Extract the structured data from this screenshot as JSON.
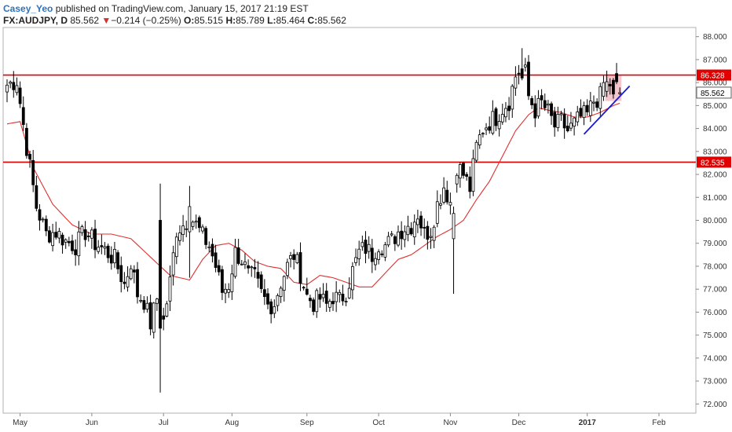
{
  "header": {
    "author": "Casey_Yeo",
    "published_text": " published on TradingView.com, January 15, 2017 21:19 EST",
    "symbol": "FX:AUDJPY, D",
    "last": "85.562",
    "change_arrow": "▼",
    "change": "−0.214 (−0.25%)",
    "open_label": "O:",
    "open": "85.515",
    "high_label": "H:",
    "high": "85.789",
    "low_label": "L:",
    "low": "85.464",
    "close_label": "C:",
    "close": "85.562"
  },
  "colors": {
    "up_body": "#ffffff",
    "down_body": "#000000",
    "wick": "#000000",
    "ma": "#e03030",
    "level": "#e00000",
    "trendline": "#1a1ad0",
    "highlight": "#f4b8c2",
    "current_price_box": "#ffffff"
  },
  "chart_data": {
    "type": "candlestick",
    "symbol": "FX:AUDJPY",
    "timeframe": "D",
    "ylim": [
      71.6,
      88.4
    ],
    "y_ticks": [
      "72.000",
      "73.000",
      "74.000",
      "75.000",
      "76.000",
      "77.000",
      "78.000",
      "79.000",
      "80.000",
      "81.000",
      "82.000",
      "83.000",
      "84.000",
      "85.000",
      "86.000",
      "87.000",
      "88.000"
    ],
    "x_ticks": [
      {
        "label": "May",
        "index": 4
      },
      {
        "label": "Jun",
        "index": 26
      },
      {
        "label": "Jul",
        "index": 48
      },
      {
        "label": "Aug",
        "index": 69
      },
      {
        "label": "Sep",
        "index": 92
      },
      {
        "label": "Oct",
        "index": 114
      },
      {
        "label": "Nov",
        "index": 136
      },
      {
        "label": "Dec",
        "index": 157
      },
      {
        "label": "2017",
        "index": 178
      },
      {
        "label": "Feb",
        "index": 200
      }
    ],
    "horizontal_levels": [
      {
        "value": 86.328,
        "label": "86.328"
      },
      {
        "value": 82.535,
        "label": "82.535"
      }
    ],
    "current_price": {
      "value": 85.562,
      "label": "85.562"
    },
    "trendline": {
      "start": {
        "index": 177,
        "value": 83.75
      },
      "end": {
        "index": 191,
        "value": 85.85
      }
    },
    "highlight_zone": {
      "start_index": 184,
      "end_index": 188,
      "low": 85.2,
      "high": 86.3
    },
    "ma_anchors": [
      [
        0,
        84.2
      ],
      [
        4,
        84.3
      ],
      [
        8,
        82.3
      ],
      [
        14,
        80.7
      ],
      [
        20,
        79.8
      ],
      [
        26,
        79.4
      ],
      [
        32,
        79.4
      ],
      [
        38,
        79.2
      ],
      [
        44,
        78.4
      ],
      [
        50,
        77.6
      ],
      [
        56,
        77.4
      ],
      [
        60,
        78.3
      ],
      [
        64,
        78.9
      ],
      [
        68,
        79.0
      ],
      [
        72,
        78.7
      ],
      [
        76,
        78.2
      ],
      [
        80,
        78.0
      ],
      [
        84,
        77.9
      ],
      [
        88,
        77.3
      ],
      [
        92,
        77.2
      ],
      [
        96,
        77.6
      ],
      [
        100,
        77.5
      ],
      [
        104,
        77.3
      ],
      [
        108,
        77.1
      ],
      [
        112,
        77.1
      ],
      [
        116,
        77.7
      ],
      [
        120,
        78.3
      ],
      [
        124,
        78.5
      ],
      [
        128,
        78.9
      ],
      [
        132,
        79.3
      ],
      [
        136,
        79.6
      ],
      [
        140,
        80.0
      ],
      [
        144,
        80.9
      ],
      [
        148,
        81.7
      ],
      [
        152,
        82.8
      ],
      [
        156,
        83.9
      ],
      [
        160,
        84.6
      ],
      [
        163,
        84.9
      ],
      [
        166,
        84.8
      ],
      [
        170,
        84.7
      ],
      [
        174,
        84.5
      ],
      [
        178,
        84.5
      ],
      [
        182,
        84.7
      ],
      [
        186,
        85.0
      ],
      [
        188,
        85.1
      ]
    ],
    "close_anchors": [
      [
        0,
        85.9
      ],
      [
        3,
        86.1
      ],
      [
        6,
        83.2
      ],
      [
        9,
        80.6
      ],
      [
        12,
        79.4
      ],
      [
        15,
        79.5
      ],
      [
        18,
        79.1
      ],
      [
        21,
        78.9
      ],
      [
        24,
        79.5
      ],
      [
        27,
        79.0
      ],
      [
        30,
        78.7
      ],
      [
        33,
        78.3
      ],
      [
        36,
        77.2
      ],
      [
        38,
        78.2
      ],
      [
        40,
        76.8
      ],
      [
        42,
        76.5
      ],
      [
        44,
        75.5
      ],
      [
        46,
        76.6
      ],
      [
        48,
        75.6
      ],
      [
        50,
        77.3
      ],
      [
        52,
        79.6
      ],
      [
        54,
        79.8
      ],
      [
        56,
        80.2
      ],
      [
        58,
        79.8
      ],
      [
        60,
        79.3
      ],
      [
        62,
        78.9
      ],
      [
        64,
        78.0
      ],
      [
        66,
        76.9
      ],
      [
        68,
        77.2
      ],
      [
        70,
        78.6
      ],
      [
        72,
        78.3
      ],
      [
        74,
        77.6
      ],
      [
        76,
        77.5
      ],
      [
        78,
        76.8
      ],
      [
        80,
        76.3
      ],
      [
        82,
        76.4
      ],
      [
        84,
        77.3
      ],
      [
        86,
        78.0
      ],
      [
        88,
        78.5
      ],
      [
        90,
        77.7
      ],
      [
        92,
        76.7
      ],
      [
        94,
        76.4
      ],
      [
        96,
        76.6
      ],
      [
        98,
        76.3
      ],
      [
        100,
        76.7
      ],
      [
        102,
        76.5
      ],
      [
        104,
        76.9
      ],
      [
        106,
        77.8
      ],
      [
        108,
        78.6
      ],
      [
        110,
        78.8
      ],
      [
        112,
        78.5
      ],
      [
        114,
        79.0
      ],
      [
        116,
        78.9
      ],
      [
        118,
        79.1
      ],
      [
        120,
        79.5
      ],
      [
        122,
        79.7
      ],
      [
        124,
        79.8
      ],
      [
        126,
        80.3
      ],
      [
        128,
        79.4
      ],
      [
        130,
        79.6
      ],
      [
        132,
        80.7
      ],
      [
        134,
        81.5
      ],
      [
        136,
        80.8
      ],
      [
        138,
        82.4
      ],
      [
        140,
        82.0
      ],
      [
        142,
        81.4
      ],
      [
        144,
        83.2
      ],
      [
        146,
        84.0
      ],
      [
        148,
        84.3
      ],
      [
        150,
        84.5
      ],
      [
        152,
        84.9
      ],
      [
        154,
        85.2
      ],
      [
        156,
        86.3
      ],
      [
        158,
        86.7
      ],
      [
        159,
        86.4
      ],
      [
        160,
        85.4
      ],
      [
        162,
        84.8
      ],
      [
        164,
        85.1
      ],
      [
        166,
        84.7
      ],
      [
        168,
        84.1
      ],
      [
        170,
        84.3
      ],
      [
        172,
        83.9
      ],
      [
        174,
        84.2
      ],
      [
        176,
        84.5
      ],
      [
        178,
        84.6
      ],
      [
        180,
        85.2
      ],
      [
        182,
        85.4
      ],
      [
        184,
        85.9
      ],
      [
        186,
        86.0
      ],
      [
        188,
        85.56
      ]
    ],
    "special_candles": [
      {
        "index": 47,
        "open": 80.0,
        "high": 81.6,
        "low": 72.5,
        "close": 75.3
      },
      {
        "index": 56,
        "open": 79.5,
        "high": 81.5,
        "low": 77.5,
        "close": 80.6
      },
      {
        "index": 137,
        "open": 79.2,
        "high": 80.6,
        "low": 76.8,
        "close": 80.3
      },
      {
        "index": 158,
        "open": 86.6,
        "high": 87.5,
        "low": 86.1,
        "close": 86.2
      },
      {
        "index": 183,
        "open": 85.4,
        "high": 86.3,
        "low": 85.2,
        "close": 86.0
      },
      {
        "index": 186,
        "open": 86.1,
        "high": 86.2,
        "low": 85.3,
        "close": 85.5
      },
      {
        "index": 188,
        "open": 85.515,
        "high": 85.789,
        "low": 85.464,
        "close": 85.562
      }
    ],
    "candle_count": 189,
    "seed": 7
  }
}
